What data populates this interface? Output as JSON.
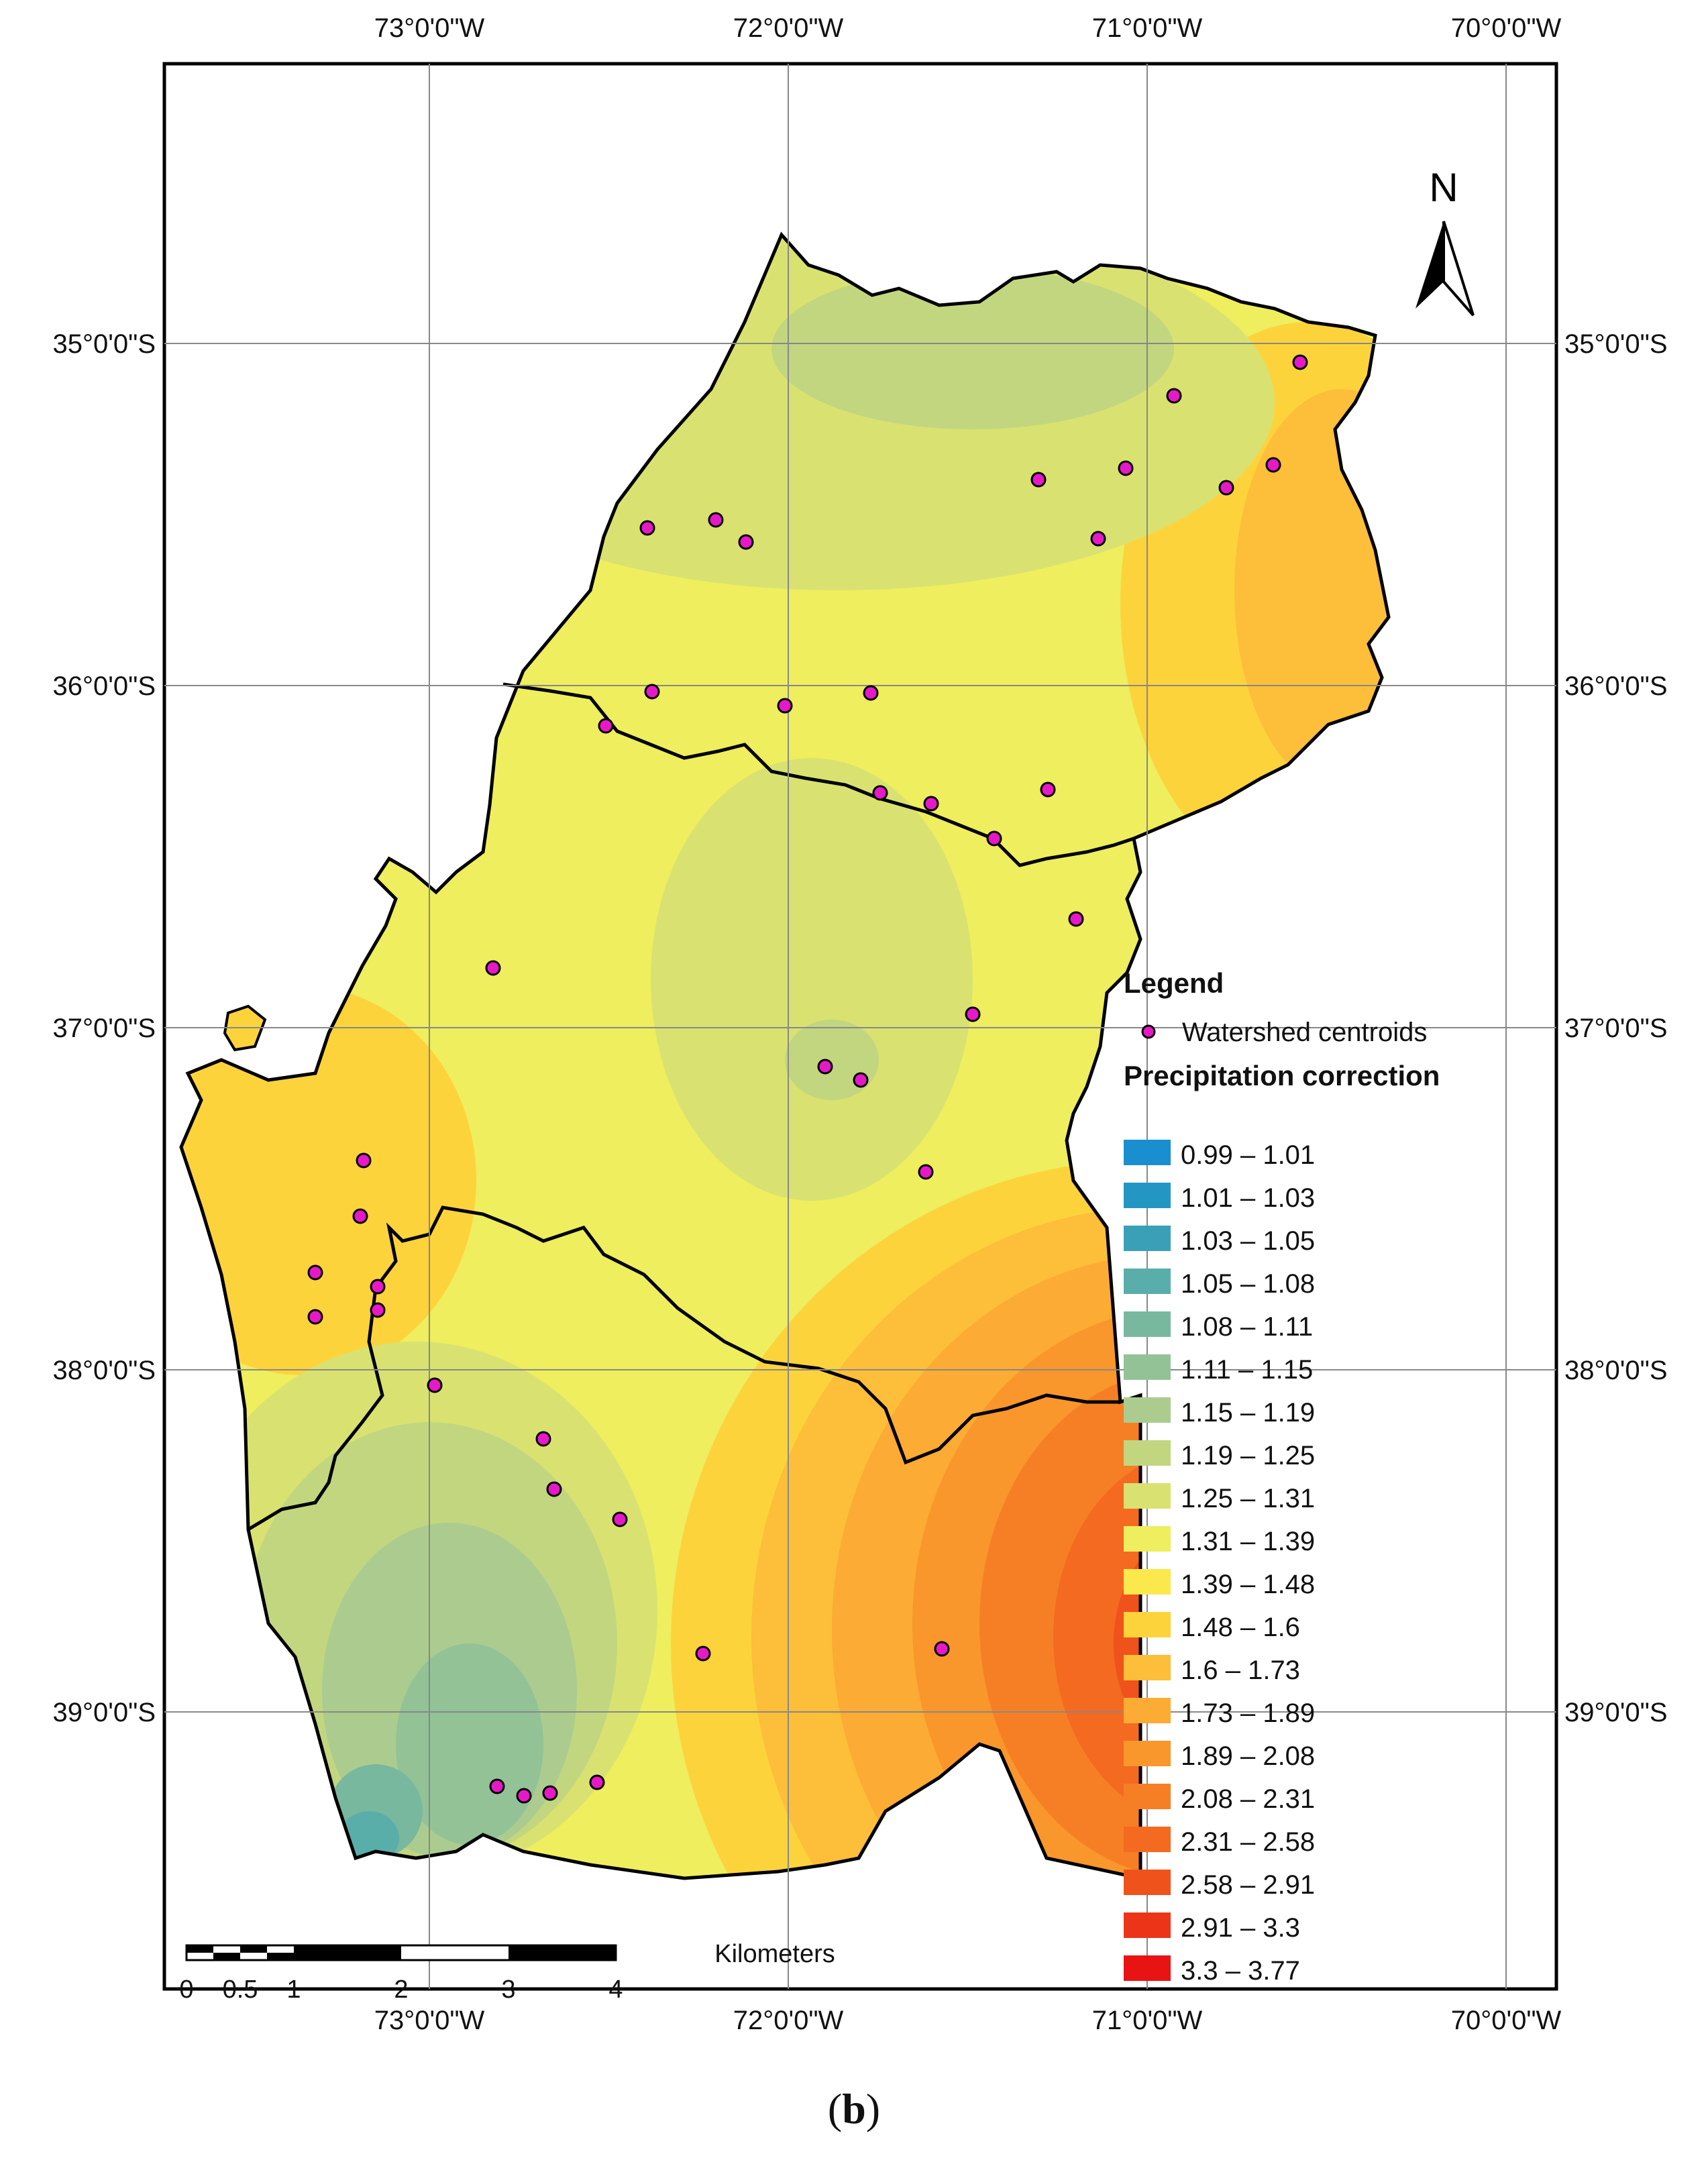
{
  "top_axis_labels": [
    "73°0'0\"W",
    "72°0'0\"W",
    "71°0'0\"W",
    "70°0'0\"W"
  ],
  "bottom_axis_labels": [
    "73°0'0\"W",
    "72°0'0\"W",
    "71°0'0\"W",
    "70°0'0\"W"
  ],
  "left_axis_labels": [
    "35°0'0\"S",
    "36°0'0\"S",
    "37°0'0\"S",
    "38°0'0\"S",
    "39°0'0\"S"
  ],
  "right_axis_labels": [
    "35°0'0\"S",
    "36°0'0\"S",
    "37°0'0\"S",
    "38°0'0\"S",
    "39°0'0\"S"
  ],
  "north_arrow": {
    "label": "N",
    "icon": "north-arrow-icon"
  },
  "legend": {
    "title": "Legend",
    "point_label": "Watershed centroids",
    "point_color": "#e619c8",
    "ramp_title": "Precipitation correction",
    "classes": [
      {
        "label": "0.99 – 1.01",
        "color": "#1a8fcf"
      },
      {
        "label": "1.01 – 1.03",
        "color": "#2396c4"
      },
      {
        "label": "1.03 – 1.05",
        "color": "#3aa0b8"
      },
      {
        "label": "1.05 – 1.08",
        "color": "#5aaeaa"
      },
      {
        "label": "1.08 – 1.11",
        "color": "#78b89f"
      },
      {
        "label": "1.11 – 1.15",
        "color": "#93c297"
      },
      {
        "label": "1.15 – 1.19",
        "color": "#abcc8e"
      },
      {
        "label": "1.19 – 1.25",
        "color": "#c2d680"
      },
      {
        "label": "1.25 – 1.31",
        "color": "#d9e270"
      },
      {
        "label": "1.31 – 1.39",
        "color": "#eeee5e"
      },
      {
        "label": "1.39 – 1.48",
        "color": "#fbe84c"
      },
      {
        "label": "1.48 – 1.6",
        "color": "#fdd33c"
      },
      {
        "label": "1.6 – 1.73",
        "color": "#fdbe3a"
      },
      {
        "label": "1.73 – 1.89",
        "color": "#fcab34"
      },
      {
        "label": "1.89 – 2.08",
        "color": "#f9962c"
      },
      {
        "label": "2.08 – 2.31",
        "color": "#f67f25"
      },
      {
        "label": "2.31 – 2.58",
        "color": "#f36a20"
      },
      {
        "label": "2.58 – 2.91",
        "color": "#f0521c"
      },
      {
        "label": "2.91 – 3.3",
        "color": "#ec3518"
      },
      {
        "label": "3.3 – 3.77",
        "color": "#e81414"
      }
    ]
  },
  "scale_bar": {
    "unit": "Kilometers",
    "ticks": [
      "0",
      "0.5",
      "1",
      "2",
      "3",
      "4"
    ]
  },
  "caption": {
    "open": "(",
    "letter": "b",
    "close": ")"
  }
}
